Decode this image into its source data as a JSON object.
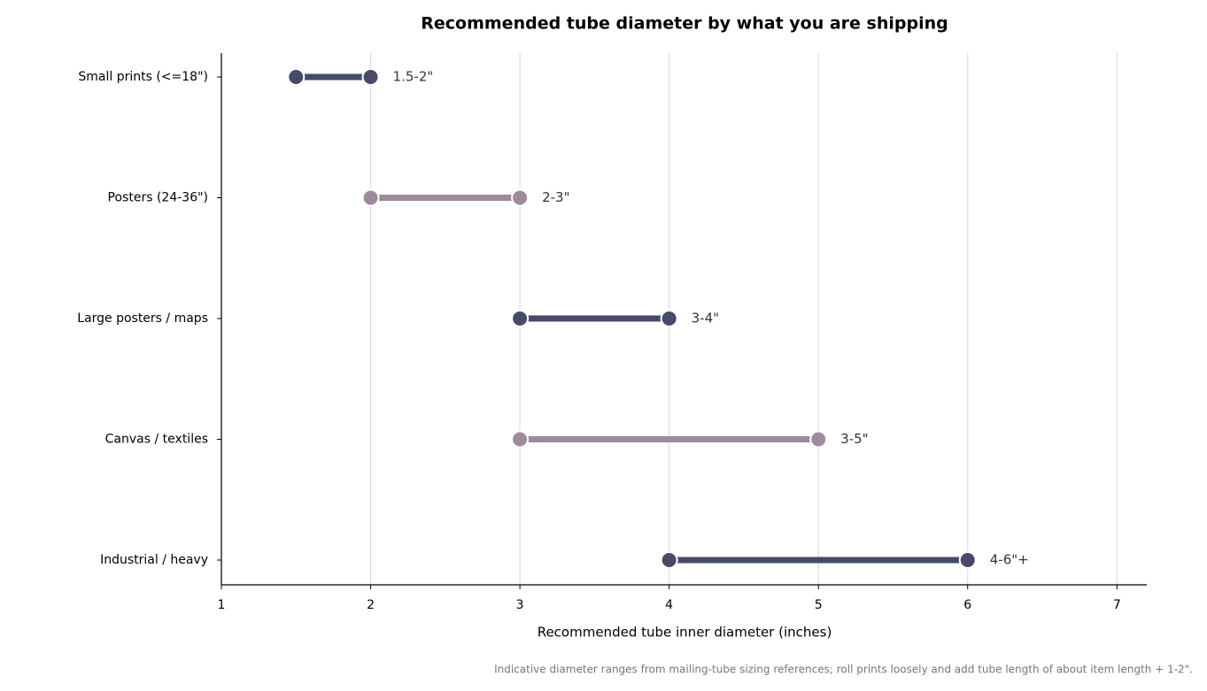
{
  "chart_data": {
    "type": "dumbbell",
    "title": "Recommended tube diameter by what you are shipping",
    "x_label": "Recommended tube inner diameter (inches)",
    "note": "Indicative diameter ranges from mailing-tube sizing references; roll prints loosely and add tube length of about item length + 1-2\".",
    "categories": [
      "Small prints (<=18\")",
      "Posters (24-36\")",
      "Large posters / maps",
      "Canvas / textiles",
      "Industrial / heavy"
    ],
    "low": [
      1.5,
      2,
      3,
      3,
      4
    ],
    "high": [
      2,
      3,
      4,
      5,
      6
    ],
    "value_labels": [
      "1.5-2\"",
      "2-3\"",
      "3-4\"",
      "3-5\"",
      "4-6\"+"
    ],
    "colors": [
      "#474b68",
      "#9d8a9b",
      "#474b68",
      "#9d8a9b",
      "#474b68"
    ],
    "xlim": [
      1,
      7.2
    ],
    "xticks": [
      1,
      2,
      3,
      4,
      5,
      6,
      7
    ],
    "grid": true
  }
}
